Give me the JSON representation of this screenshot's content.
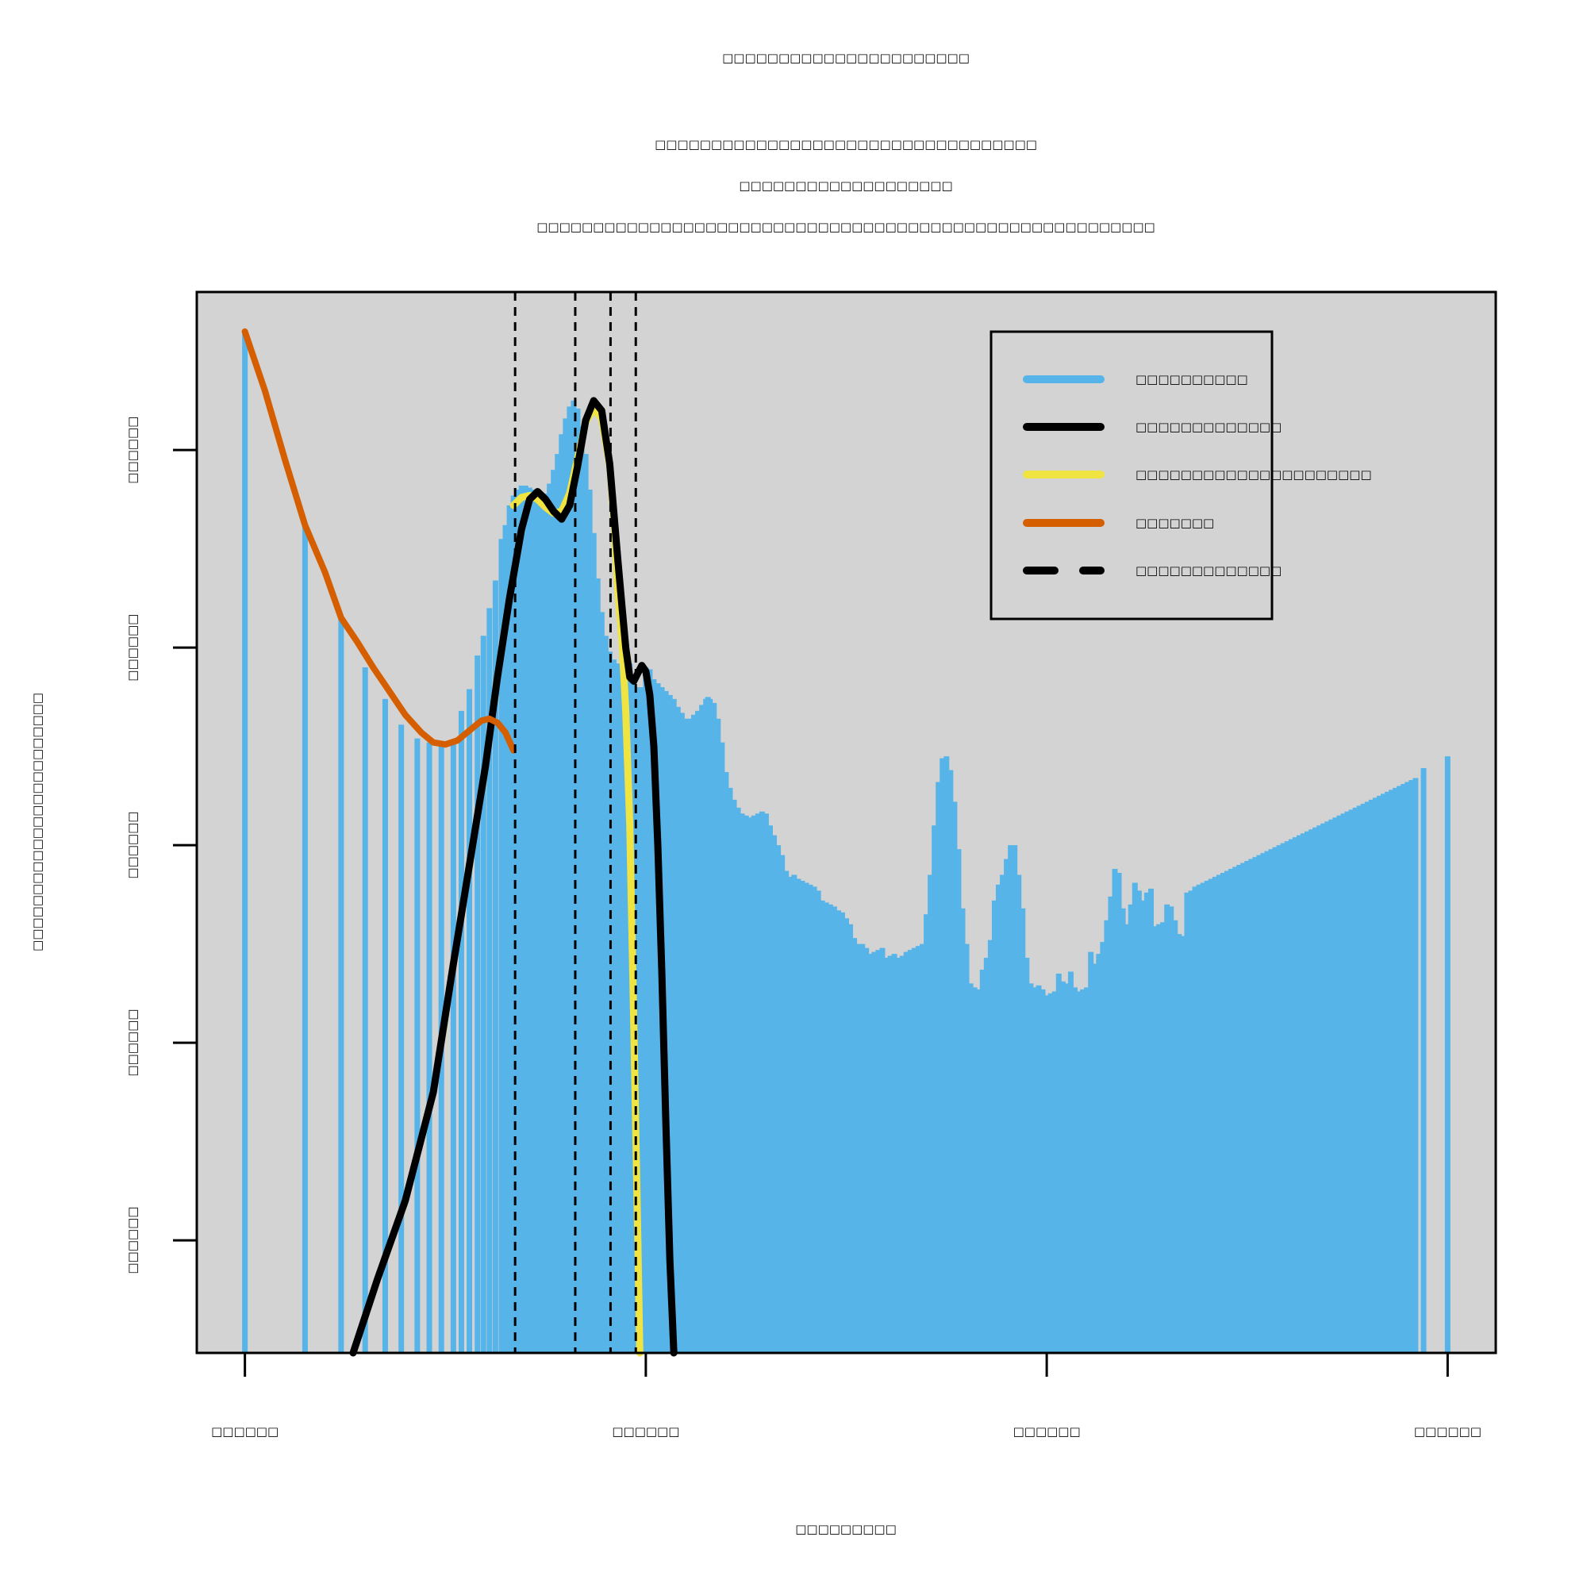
{
  "chart_data": {
    "type": "bar",
    "title_lines": [
      "□□□□□□□□□□□□□□□□□□□□□□",
      "□□□□□□□□□□□□□□□□□□□□□□□□□□□□□□□□□□",
      "□□□□□□□□□□□□□□□□□□□",
      "□□□□□□□□□□□□□□□□□□□□□□□□□□□□□□□□□□□□□□□□□□□□□□□□□□□□□□□"
    ],
    "xlabel": "□□□□□□□□□",
    "ylabel": "□□□□□□□□□□□□□□□□□□□□□□□",
    "x_ticks": [
      {
        "value": 0,
        "label": "□□□□□□"
      },
      {
        "value": 100,
        "label": "□□□□□□"
      },
      {
        "value": 200,
        "label": "□□□□□□"
      },
      {
        "value": 300,
        "label": "□□□□□□"
      }
    ],
    "y_ticks": [
      {
        "value": 0,
        "label": "□□□□□□"
      },
      {
        "value": 100,
        "label": "□□□□□□"
      },
      {
        "value": 200,
        "label": "□□□□□□"
      },
      {
        "value": 300,
        "label": "□□□□□□"
      },
      {
        "value": 400,
        "label": "□□□□□□"
      }
    ],
    "xlim": [
      -12,
      312
    ],
    "ylim": [
      -57,
      480
    ],
    "grid": false,
    "legend_position": "top-right",
    "colors": {
      "background": "#d3d3d3",
      "histogram": "#56b4e9",
      "fit": "#000000",
      "component": "#f0e442",
      "error": "#d55e00",
      "markers": "#000000"
    },
    "legend": [
      {
        "label": "□□□□□□□□□□",
        "color": "#56b4e9",
        "style": "solid"
      },
      {
        "label": "□□□□□□□□□□□□□",
        "color": "#000000",
        "style": "solid"
      },
      {
        "label": "□□□□□□□□□□□□□□□□□□□□□",
        "color": "#f0e442",
        "style": "solid"
      },
      {
        "label": "□□□□□□□",
        "color": "#d55e00",
        "style": "solid"
      },
      {
        "label": "□□□□□□□□□□□□□",
        "color": "#000000",
        "style": "dashed"
      }
    ],
    "histogram": {
      "name": "□□□□□□□□□□",
      "bins": [
        [
          0,
          460
        ],
        [
          15,
          362
        ],
        [
          24,
          315
        ],
        [
          30,
          290
        ],
        [
          35,
          274
        ],
        [
          39,
          261
        ],
        [
          43,
          254
        ],
        [
          46,
          252
        ],
        [
          49,
          250
        ],
        [
          52,
          252
        ],
        [
          54,
          268
        ],
        [
          56,
          279
        ],
        [
          58,
          296
        ],
        [
          59.5,
          306
        ],
        [
          61,
          320
        ],
        [
          62.5,
          334
        ],
        [
          64,
          355
        ],
        [
          65,
          362
        ],
        [
          66,
          372
        ],
        [
          67,
          377
        ],
        [
          68,
          380
        ],
        [
          69,
          382
        ],
        [
          70,
          382
        ],
        [
          71,
          381
        ],
        [
          72,
          380
        ],
        [
          73,
          378
        ],
        [
          74,
          377
        ],
        [
          75,
          378
        ],
        [
          76,
          383
        ],
        [
          77,
          390
        ],
        [
          78,
          398
        ],
        [
          79,
          408
        ],
        [
          80,
          416
        ],
        [
          81,
          422
        ],
        [
          82,
          425
        ],
        [
          83,
          421
        ],
        [
          84,
          412
        ],
        [
          85,
          398
        ],
        [
          86,
          380
        ],
        [
          87,
          358
        ],
        [
          88,
          335
        ],
        [
          89,
          318
        ],
        [
          90,
          306
        ],
        [
          91,
          298
        ],
        [
          92,
          294
        ],
        [
          93,
          292
        ],
        [
          94,
          292
        ],
        [
          95,
          293
        ],
        [
          96,
          292
        ],
        [
          97,
          286
        ],
        [
          98,
          280
        ],
        [
          99,
          280
        ],
        [
          100,
          290
        ],
        [
          101,
          289
        ],
        [
          102,
          284
        ],
        [
          103,
          282
        ],
        [
          104,
          280
        ],
        [
          105,
          278
        ],
        [
          106,
          276
        ],
        [
          107,
          274
        ],
        [
          108,
          270
        ],
        [
          109,
          267
        ],
        [
          110,
          264
        ],
        [
          111,
          264
        ],
        [
          112,
          266
        ],
        [
          113,
          268
        ],
        [
          114,
          271
        ],
        [
          115,
          274
        ],
        [
          115.5,
          275
        ],
        [
          116,
          274
        ],
        [
          117,
          272
        ],
        [
          118,
          264
        ],
        [
          119,
          252
        ],
        [
          120,
          237
        ],
        [
          121,
          229
        ],
        [
          122,
          223
        ],
        [
          123,
          219
        ],
        [
          124,
          216
        ],
        [
          125,
          215
        ],
        [
          126,
          214
        ],
        [
          127,
          215
        ],
        [
          128,
          216
        ],
        [
          129,
          217
        ],
        [
          130,
          216
        ],
        [
          131,
          210
        ],
        [
          132,
          205
        ],
        [
          133,
          200
        ],
        [
          134,
          195
        ],
        [
          135,
          187
        ],
        [
          136,
          184
        ],
        [
          137,
          185
        ],
        [
          138,
          183
        ],
        [
          139,
          182
        ],
        [
          140,
          181
        ],
        [
          141,
          180
        ],
        [
          142,
          179
        ],
        [
          143,
          177
        ],
        [
          144,
          172
        ],
        [
          145,
          171
        ],
        [
          146,
          170
        ],
        [
          147,
          169
        ],
        [
          148,
          167
        ],
        [
          149,
          166
        ],
        [
          150,
          163
        ],
        [
          151,
          160
        ],
        [
          152,
          153
        ],
        [
          153,
          150
        ],
        [
          154,
          150
        ],
        [
          155,
          148
        ],
        [
          156,
          145
        ],
        [
          157,
          146
        ],
        [
          158,
          147
        ],
        [
          159,
          148
        ],
        [
          160,
          143
        ],
        [
          161,
          144
        ],
        [
          162,
          145
        ],
        [
          163,
          143
        ],
        [
          164,
          144
        ],
        [
          165,
          146
        ],
        [
          166,
          147
        ],
        [
          167,
          148
        ],
        [
          168,
          149
        ],
        [
          169,
          150
        ],
        [
          170,
          165
        ],
        [
          171,
          185
        ],
        [
          172,
          210
        ],
        [
          173,
          232
        ],
        [
          174,
          244
        ],
        [
          175,
          245
        ],
        [
          176,
          238
        ],
        [
          177,
          222
        ],
        [
          178,
          198
        ],
        [
          179,
          168
        ],
        [
          180,
          150
        ],
        [
          181,
          130
        ],
        [
          182,
          128
        ],
        [
          183,
          127
        ],
        [
          184,
          137
        ],
        [
          185,
          143
        ],
        [
          186,
          152
        ],
        [
          187,
          172
        ],
        [
          188,
          180
        ],
        [
          189,
          185
        ],
        [
          190,
          193
        ],
        [
          191,
          200
        ],
        [
          192,
          200
        ],
        [
          193,
          185
        ],
        [
          194,
          168
        ],
        [
          195,
          143
        ],
        [
          196,
          130
        ],
        [
          197,
          128
        ],
        [
          198,
          129
        ],
        [
          199,
          127
        ],
        [
          200,
          124
        ],
        [
          201,
          125
        ],
        [
          202,
          126
        ],
        [
          203,
          135
        ],
        [
          204,
          131
        ],
        [
          205,
          130
        ],
        [
          206,
          136
        ],
        [
          207,
          128
        ],
        [
          208,
          126
        ],
        [
          209,
          127
        ],
        [
          210,
          128
        ],
        [
          211,
          146
        ],
        [
          212,
          140
        ],
        [
          213,
          145
        ],
        [
          214,
          151
        ],
        [
          215,
          162
        ],
        [
          216,
          174
        ],
        [
          217,
          188
        ],
        [
          218,
          186
        ],
        [
          219,
          168
        ],
        [
          220,
          160
        ],
        [
          221,
          170
        ],
        [
          222,
          181
        ],
        [
          223,
          177
        ],
        [
          224,
          172
        ],
        [
          225,
          176
        ],
        [
          226,
          178
        ],
        [
          227,
          159
        ],
        [
          228,
          160
        ],
        [
          229,
          161
        ],
        [
          230,
          170
        ],
        [
          231,
          169
        ],
        [
          232,
          162
        ],
        [
          233,
          155
        ],
        [
          234,
          154
        ],
        [
          235,
          176
        ],
        [
          236,
          177
        ],
        [
          237,
          179
        ],
        [
          238,
          180
        ],
        [
          239,
          181
        ],
        [
          240,
          182
        ],
        [
          241,
          183
        ],
        [
          242,
          184
        ],
        [
          243,
          185
        ],
        [
          244,
          186
        ],
        [
          245,
          187
        ],
        [
          246,
          188
        ],
        [
          247,
          189
        ],
        [
          248,
          190
        ],
        [
          249,
          191
        ],
        [
          250,
          192
        ],
        [
          251,
          193
        ],
        [
          252,
          194
        ],
        [
          253,
          195
        ],
        [
          254,
          196
        ],
        [
          255,
          197
        ],
        [
          256,
          198
        ],
        [
          257,
          199
        ],
        [
          258,
          200
        ],
        [
          259,
          201
        ],
        [
          260,
          202
        ],
        [
          261,
          203
        ],
        [
          262,
          204
        ],
        [
          263,
          205
        ],
        [
          264,
          206
        ],
        [
          265,
          207
        ],
        [
          266,
          208
        ],
        [
          267,
          209
        ],
        [
          268,
          210
        ],
        [
          269,
          211
        ],
        [
          270,
          212
        ],
        [
          271,
          213
        ],
        [
          272,
          214
        ],
        [
          273,
          215
        ],
        [
          274,
          216
        ],
        [
          275,
          217
        ],
        [
          276,
          218
        ],
        [
          277,
          219
        ],
        [
          278,
          220
        ],
        [
          279,
          221
        ],
        [
          280,
          222
        ],
        [
          281,
          223
        ],
        [
          282,
          224
        ],
        [
          283,
          225
        ],
        [
          284,
          226
        ],
        [
          285,
          227
        ],
        [
          286,
          228
        ],
        [
          287,
          229
        ],
        [
          288,
          230
        ],
        [
          289,
          231
        ],
        [
          290,
          232
        ],
        [
          291,
          233
        ],
        [
          292,
          234
        ],
        [
          294,
          239
        ],
        [
          300,
          245
        ]
      ]
    },
    "fit_curve": {
      "name": "□□□□□□□□□□□□□",
      "points": [
        [
          27,
          -57
        ],
        [
          33,
          -20
        ],
        [
          40,
          20
        ],
        [
          47,
          75
        ],
        [
          52,
          140
        ],
        [
          56,
          190
        ],
        [
          60,
          240
        ],
        [
          63,
          285
        ],
        [
          66,
          325
        ],
        [
          69,
          360
        ],
        [
          71,
          375
        ],
        [
          73,
          379
        ],
        [
          75,
          375
        ],
        [
          77,
          369
        ],
        [
          79,
          365
        ],
        [
          81,
          372
        ],
        [
          83,
          392
        ],
        [
          85,
          415
        ],
        [
          87,
          425
        ],
        [
          89,
          420
        ],
        [
          91,
          393
        ],
        [
          93,
          345
        ],
        [
          94,
          322
        ],
        [
          95,
          300
        ],
        [
          96,
          285
        ],
        [
          97,
          283
        ],
        [
          98,
          287
        ],
        [
          99,
          291
        ],
        [
          100,
          288
        ],
        [
          101,
          276
        ],
        [
          102,
          250
        ],
        [
          103,
          200
        ],
        [
          104,
          135
        ],
        [
          105,
          60
        ],
        [
          106,
          -10
        ],
        [
          107,
          -57
        ]
      ]
    },
    "component_curve": {
      "name": "□□□□□□□□□□□□□□□□□□□□□",
      "points": [
        [
          67,
          372
        ],
        [
          69,
          376
        ],
        [
          71,
          377
        ],
        [
          73,
          375
        ],
        [
          75,
          371
        ],
        [
          77,
          368
        ],
        [
          79,
          369
        ],
        [
          81,
          378
        ],
        [
          83,
          396
        ],
        [
          85,
          414
        ],
        [
          87,
          421
        ],
        [
          89,
          416
        ],
        [
          91,
          392
        ],
        [
          92,
          366
        ],
        [
          93,
          330
        ],
        [
          94,
          305
        ],
        [
          95,
          268
        ],
        [
          96,
          210
        ],
        [
          97,
          110
        ],
        [
          98,
          0
        ],
        [
          98.5,
          -57
        ]
      ]
    },
    "error_curve": {
      "name": "□□□□□□□",
      "points": [
        [
          0,
          460
        ],
        [
          5,
          430
        ],
        [
          10,
          395
        ],
        [
          15,
          362
        ],
        [
          20,
          338
        ],
        [
          24,
          315
        ],
        [
          28,
          303
        ],
        [
          32,
          290
        ],
        [
          36,
          278
        ],
        [
          40,
          266
        ],
        [
          44,
          257
        ],
        [
          47,
          252
        ],
        [
          50,
          251
        ],
        [
          53,
          253
        ],
        [
          56,
          258
        ],
        [
          59,
          263
        ],
        [
          61,
          264
        ],
        [
          63,
          262
        ],
        [
          65,
          257
        ],
        [
          67,
          248
        ]
      ]
    },
    "vertical_markers": {
      "name": "□□□□□□□□□□□□□",
      "x": [
        67.4,
        82.4,
        91.2,
        97.5
      ]
    }
  }
}
